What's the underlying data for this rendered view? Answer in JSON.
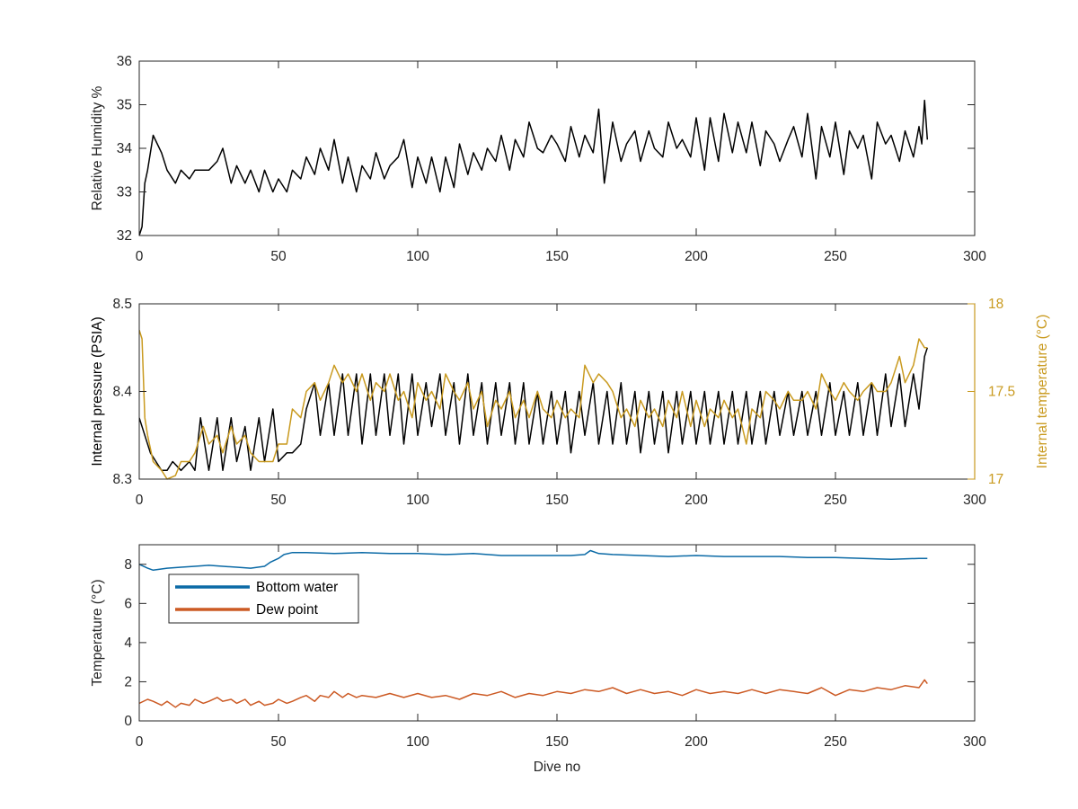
{
  "figure": {
    "xlabel": "Dive no"
  },
  "chart_data": [
    {
      "type": "line",
      "ylabel": "Relative Humidity %",
      "xlim": [
        0,
        300
      ],
      "ylim": [
        32,
        36
      ],
      "xticks": [
        "0",
        "50",
        "100",
        "150",
        "200",
        "250",
        "300"
      ],
      "yticks": [
        "32",
        "33",
        "34",
        "35",
        "36"
      ],
      "series": [
        {
          "color": "#000000",
          "x": [
            0,
            1,
            2,
            3,
            5,
            8,
            10,
            13,
            15,
            18,
            20,
            25,
            28,
            30,
            33,
            35,
            38,
            40,
            43,
            45,
            48,
            50,
            53,
            55,
            58,
            60,
            63,
            65,
            68,
            70,
            73,
            75,
            78,
            80,
            83,
            85,
            88,
            90,
            93,
            95,
            98,
            100,
            103,
            105,
            108,
            110,
            113,
            115,
            118,
            120,
            123,
            125,
            128,
            130,
            133,
            135,
            138,
            140,
            143,
            145,
            148,
            150,
            153,
            155,
            158,
            160,
            163,
            165,
            167,
            170,
            173,
            175,
            178,
            180,
            183,
            185,
            188,
            190,
            193,
            195,
            198,
            200,
            203,
            205,
            208,
            210,
            213,
            215,
            218,
            220,
            223,
            225,
            228,
            230,
            233,
            235,
            238,
            240,
            243,
            245,
            248,
            250,
            253,
            255,
            258,
            260,
            263,
            265,
            268,
            270,
            273,
            275,
            278,
            280,
            281,
            282,
            283
          ],
          "values": [
            32.0,
            32.2,
            33.2,
            33.5,
            34.3,
            33.9,
            33.5,
            33.2,
            33.5,
            33.3,
            33.5,
            33.5,
            33.7,
            34.0,
            33.2,
            33.6,
            33.2,
            33.5,
            33.0,
            33.5,
            33.0,
            33.3,
            33.0,
            33.5,
            33.3,
            33.8,
            33.4,
            34.0,
            33.5,
            34.2,
            33.2,
            33.8,
            33.0,
            33.6,
            33.3,
            33.9,
            33.3,
            33.6,
            33.8,
            34.2,
            33.1,
            33.8,
            33.2,
            33.8,
            33.0,
            33.8,
            33.1,
            34.1,
            33.4,
            33.9,
            33.5,
            34.0,
            33.7,
            34.3,
            33.5,
            34.2,
            33.8,
            34.6,
            34.0,
            33.9,
            34.3,
            34.1,
            33.7,
            34.5,
            33.8,
            34.3,
            33.9,
            34.9,
            33.2,
            34.6,
            33.7,
            34.1,
            34.4,
            33.7,
            34.4,
            34.0,
            33.8,
            34.6,
            34.0,
            34.2,
            33.8,
            34.7,
            33.5,
            34.7,
            33.7,
            34.8,
            33.9,
            34.6,
            33.9,
            34.6,
            33.6,
            34.4,
            34.1,
            33.7,
            34.2,
            34.5,
            33.8,
            34.8,
            33.3,
            34.5,
            33.8,
            34.6,
            33.4,
            34.4,
            34.0,
            34.3,
            33.3,
            34.6,
            34.1,
            34.3,
            33.7,
            34.4,
            33.8,
            34.5,
            34.1,
            35.1,
            34.2
          ]
        }
      ]
    },
    {
      "type": "line",
      "ylabel": "Internal pressure (PSIA)",
      "ylabel_right": "Internal temperature (°C)",
      "xlim": [
        0,
        300
      ],
      "ylim": [
        8.3,
        8.5
      ],
      "ylim_right": [
        17,
        18
      ],
      "xticks": [
        "0",
        "50",
        "100",
        "150",
        "200",
        "250",
        "300"
      ],
      "yticks": [
        "8.3",
        "8.4",
        "8.5"
      ],
      "yticks_right": [
        "17",
        "17.5",
        "18"
      ],
      "series": [
        {
          "color": "#000000",
          "axis": "left",
          "x": [
            0,
            2,
            4,
            6,
            8,
            10,
            12,
            15,
            18,
            20,
            22,
            25,
            28,
            30,
            33,
            35,
            38,
            40,
            43,
            45,
            48,
            50,
            53,
            55,
            58,
            60,
            63,
            65,
            68,
            70,
            73,
            75,
            78,
            80,
            83,
            85,
            88,
            90,
            93,
            95,
            98,
            100,
            103,
            105,
            108,
            110,
            113,
            115,
            118,
            120,
            123,
            125,
            128,
            130,
            133,
            135,
            138,
            140,
            143,
            145,
            148,
            150,
            153,
            155,
            158,
            160,
            163,
            165,
            168,
            170,
            173,
            175,
            178,
            180,
            183,
            185,
            188,
            190,
            193,
            195,
            198,
            200,
            203,
            205,
            208,
            210,
            213,
            215,
            218,
            220,
            223,
            225,
            228,
            230,
            233,
            235,
            238,
            240,
            243,
            245,
            248,
            250,
            253,
            255,
            258,
            260,
            263,
            265,
            268,
            270,
            273,
            275,
            278,
            280,
            282,
            283
          ],
          "values": [
            8.37,
            8.35,
            8.33,
            8.32,
            8.31,
            8.31,
            8.32,
            8.31,
            8.32,
            8.31,
            8.37,
            8.31,
            8.37,
            8.31,
            8.37,
            8.32,
            8.36,
            8.31,
            8.37,
            8.32,
            8.38,
            8.32,
            8.33,
            8.33,
            8.34,
            8.38,
            8.41,
            8.35,
            8.41,
            8.35,
            8.42,
            8.35,
            8.42,
            8.34,
            8.42,
            8.35,
            8.42,
            8.35,
            8.42,
            8.34,
            8.42,
            8.35,
            8.41,
            8.36,
            8.42,
            8.35,
            8.41,
            8.34,
            8.42,
            8.35,
            8.41,
            8.34,
            8.41,
            8.35,
            8.41,
            8.34,
            8.41,
            8.34,
            8.4,
            8.34,
            8.4,
            8.34,
            8.4,
            8.33,
            8.4,
            8.35,
            8.41,
            8.34,
            8.4,
            8.34,
            8.41,
            8.34,
            8.4,
            8.33,
            8.4,
            8.34,
            8.4,
            8.33,
            8.4,
            8.34,
            8.4,
            8.34,
            8.4,
            8.34,
            8.4,
            8.34,
            8.4,
            8.34,
            8.4,
            8.34,
            8.4,
            8.34,
            8.4,
            8.35,
            8.4,
            8.35,
            8.4,
            8.35,
            8.4,
            8.35,
            8.41,
            8.35,
            8.4,
            8.35,
            8.41,
            8.35,
            8.41,
            8.35,
            8.42,
            8.36,
            8.42,
            8.36,
            8.42,
            8.38,
            8.44,
            8.45
          ]
        },
        {
          "color": "#c99a1f",
          "axis": "right",
          "x": [
            0,
            1,
            2,
            3,
            5,
            8,
            10,
            13,
            15,
            18,
            20,
            23,
            25,
            28,
            30,
            33,
            35,
            38,
            40,
            43,
            45,
            48,
            50,
            53,
            55,
            58,
            60,
            63,
            65,
            68,
            70,
            73,
            75,
            78,
            80,
            83,
            85,
            88,
            90,
            93,
            95,
            98,
            100,
            103,
            105,
            108,
            110,
            113,
            115,
            118,
            120,
            123,
            125,
            128,
            130,
            133,
            135,
            138,
            140,
            143,
            145,
            148,
            150,
            153,
            155,
            158,
            160,
            163,
            165,
            168,
            170,
            173,
            175,
            178,
            180,
            183,
            185,
            188,
            190,
            193,
            195,
            198,
            200,
            203,
            205,
            208,
            210,
            213,
            215,
            218,
            220,
            223,
            225,
            228,
            230,
            233,
            235,
            238,
            240,
            243,
            245,
            248,
            250,
            253,
            255,
            258,
            260,
            263,
            265,
            268,
            270,
            273,
            275,
            278,
            280,
            282,
            283
          ],
          "values": [
            17.85,
            17.8,
            17.35,
            17.25,
            17.1,
            17.05,
            17.0,
            17.02,
            17.1,
            17.1,
            17.15,
            17.3,
            17.2,
            17.25,
            17.15,
            17.3,
            17.2,
            17.25,
            17.15,
            17.1,
            17.1,
            17.1,
            17.2,
            17.2,
            17.4,
            17.35,
            17.5,
            17.55,
            17.45,
            17.55,
            17.65,
            17.55,
            17.6,
            17.5,
            17.6,
            17.45,
            17.55,
            17.5,
            17.6,
            17.45,
            17.5,
            17.35,
            17.55,
            17.45,
            17.5,
            17.4,
            17.6,
            17.5,
            17.45,
            17.55,
            17.4,
            17.5,
            17.3,
            17.45,
            17.4,
            17.5,
            17.35,
            17.45,
            17.35,
            17.5,
            17.4,
            17.35,
            17.45,
            17.35,
            17.4,
            17.35,
            17.65,
            17.55,
            17.6,
            17.55,
            17.5,
            17.35,
            17.4,
            17.3,
            17.45,
            17.35,
            17.4,
            17.3,
            17.45,
            17.35,
            17.5,
            17.3,
            17.45,
            17.3,
            17.4,
            17.35,
            17.45,
            17.35,
            17.4,
            17.2,
            17.4,
            17.35,
            17.5,
            17.45,
            17.4,
            17.5,
            17.45,
            17.45,
            17.5,
            17.4,
            17.6,
            17.5,
            17.45,
            17.55,
            17.5,
            17.45,
            17.5,
            17.55,
            17.5,
            17.5,
            17.55,
            17.7,
            17.55,
            17.65,
            17.8,
            17.75,
            17.75
          ]
        }
      ]
    },
    {
      "type": "line",
      "ylabel": "Temperature (°C)",
      "xlabel": "Dive no",
      "xlim": [
        0,
        300
      ],
      "ylim": [
        0,
        9
      ],
      "xticks": [
        "0",
        "50",
        "100",
        "150",
        "200",
        "250",
        "300"
      ],
      "yticks": [
        "0",
        "2",
        "4",
        "6",
        "8"
      ],
      "legend": "upper-left",
      "series": [
        {
          "name": "Bottom water",
          "color": "#0b6aa6",
          "x": [
            0,
            3,
            5,
            10,
            15,
            20,
            25,
            30,
            35,
            40,
            45,
            47,
            50,
            52,
            55,
            60,
            70,
            80,
            90,
            100,
            110,
            120,
            130,
            140,
            150,
            155,
            160,
            162,
            165,
            170,
            180,
            190,
            200,
            210,
            220,
            230,
            240,
            250,
            260,
            270,
            280,
            283
          ],
          "values": [
            8.0,
            7.8,
            7.7,
            7.8,
            7.85,
            7.9,
            7.95,
            7.9,
            7.85,
            7.8,
            7.9,
            8.1,
            8.3,
            8.5,
            8.6,
            8.6,
            8.55,
            8.6,
            8.55,
            8.55,
            8.5,
            8.55,
            8.45,
            8.45,
            8.45,
            8.45,
            8.5,
            8.7,
            8.55,
            8.5,
            8.45,
            8.4,
            8.45,
            8.4,
            8.4,
            8.4,
            8.35,
            8.35,
            8.3,
            8.25,
            8.3,
            8.3
          ]
        },
        {
          "name": "Dew point",
          "color": "#cc5a24",
          "x": [
            0,
            3,
            5,
            8,
            10,
            13,
            15,
            18,
            20,
            23,
            25,
            28,
            30,
            33,
            35,
            38,
            40,
            43,
            45,
            48,
            50,
            53,
            55,
            58,
            60,
            63,
            65,
            68,
            70,
            73,
            75,
            78,
            80,
            85,
            90,
            95,
            100,
            105,
            110,
            115,
            120,
            125,
            130,
            135,
            140,
            145,
            150,
            155,
            160,
            165,
            170,
            175,
            180,
            185,
            190,
            195,
            200,
            205,
            210,
            215,
            220,
            225,
            230,
            235,
            240,
            245,
            250,
            255,
            260,
            265,
            270,
            275,
            280,
            282,
            283
          ],
          "values": [
            0.9,
            1.1,
            1.0,
            0.8,
            1.0,
            0.7,
            0.9,
            0.8,
            1.1,
            0.9,
            1.0,
            1.2,
            1.0,
            1.1,
            0.9,
            1.1,
            0.8,
            1.0,
            0.8,
            0.9,
            1.1,
            0.9,
            1.0,
            1.2,
            1.3,
            1.0,
            1.3,
            1.2,
            1.5,
            1.2,
            1.4,
            1.2,
            1.3,
            1.2,
            1.4,
            1.2,
            1.4,
            1.2,
            1.3,
            1.1,
            1.4,
            1.3,
            1.5,
            1.2,
            1.4,
            1.3,
            1.5,
            1.4,
            1.6,
            1.5,
            1.7,
            1.4,
            1.6,
            1.4,
            1.5,
            1.3,
            1.6,
            1.4,
            1.5,
            1.4,
            1.6,
            1.4,
            1.6,
            1.5,
            1.4,
            1.7,
            1.3,
            1.6,
            1.5,
            1.7,
            1.6,
            1.8,
            1.7,
            2.1,
            1.9
          ]
        }
      ]
    }
  ]
}
